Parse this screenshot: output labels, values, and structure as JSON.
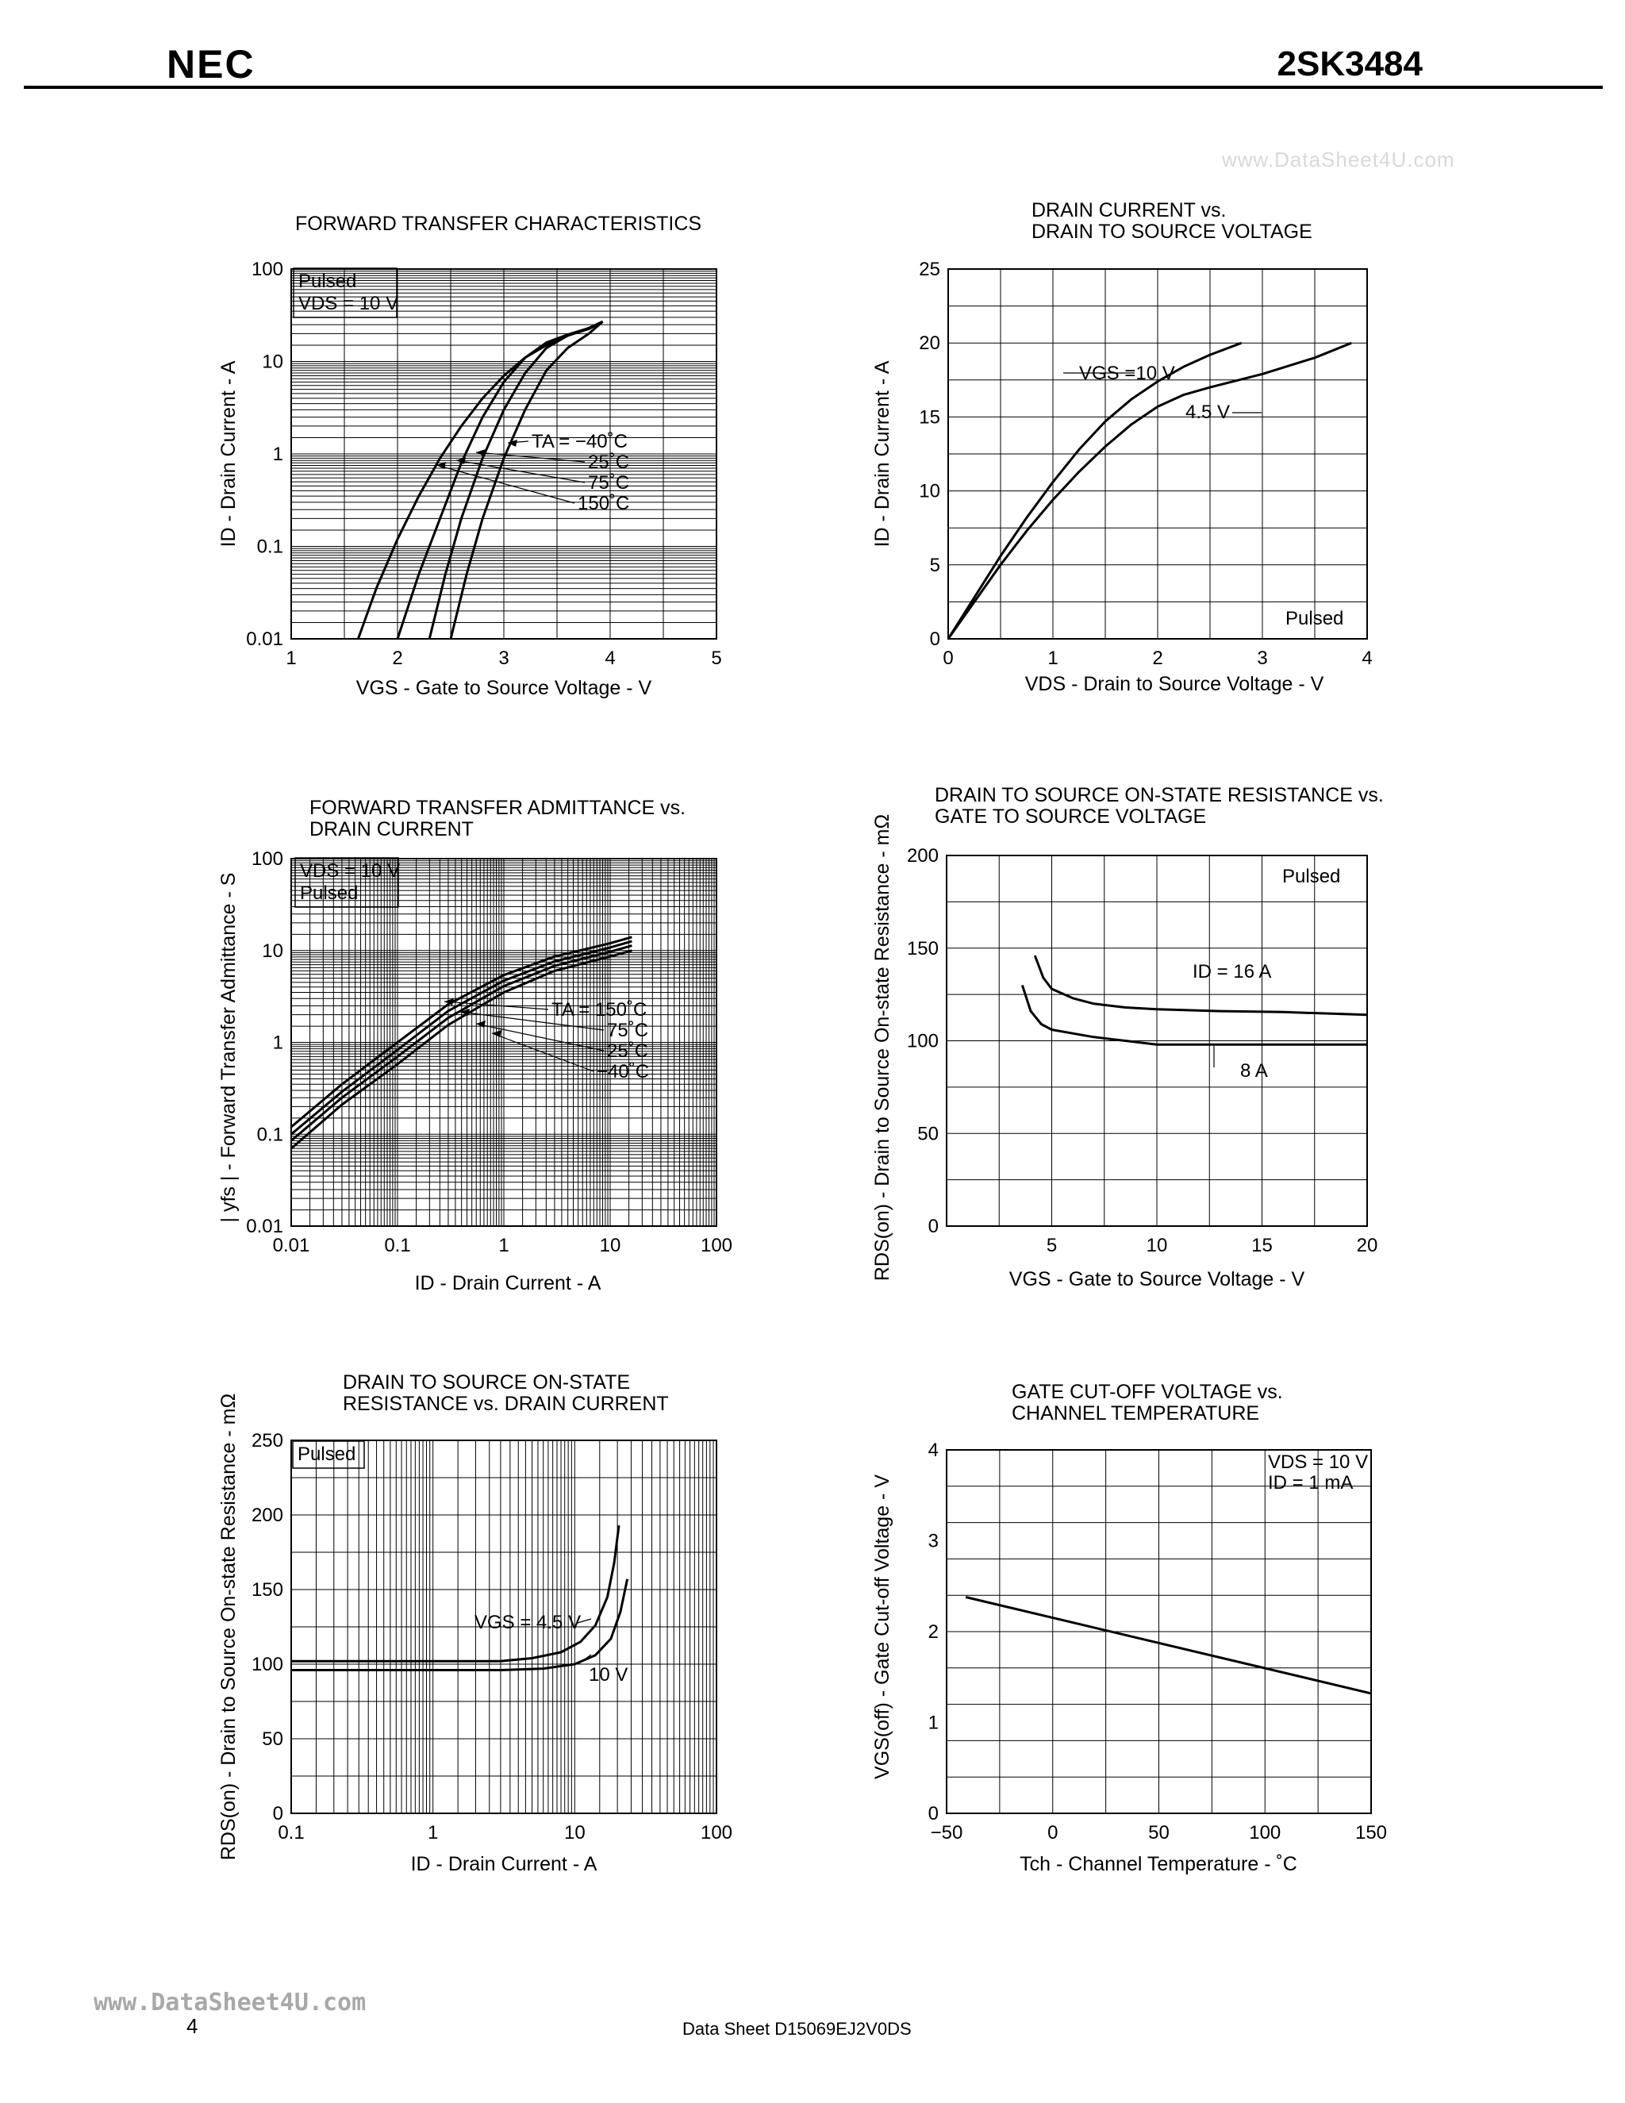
{
  "header": {
    "brand": "NEC",
    "part_number": "2SK3484"
  },
  "watermarks": {
    "top": "www.DataSheet4U.com",
    "bottom": "www.DataSheet4U.com"
  },
  "footer": {
    "page": "4",
    "doc": "Data Sheet  D15069EJ2V0DS"
  },
  "chart_data": [
    {
      "id": "fwd_transfer",
      "type": "line",
      "title": [
        "FORWARD TRANSFER CHARACTERISTICS"
      ],
      "xlabel": "VGS -  Gate to Source Voltage -  V",
      "ylabel": "ID -  Drain Current -  A",
      "xscale": "linear",
      "yscale": "log",
      "xlim": [
        1,
        5
      ],
      "ylim": [
        0.01,
        100
      ],
      "xticks": [
        "1",
        "2",
        "3",
        "4",
        "5"
      ],
      "yticks": [
        "0.01",
        "0.1",
        "1",
        "10",
        "100"
      ],
      "notes": [
        "Pulsed",
        "VDS = 10 V"
      ],
      "legend": [
        "TA = −40˚C",
        "25˚C",
        "75˚C",
        "150˚C"
      ],
      "series": [
        {
          "name": "−40˚C",
          "x": [
            2.5,
            2.65,
            2.8,
            3.0,
            3.2,
            3.4,
            3.6,
            3.8,
            3.93
          ],
          "y": [
            0.01,
            0.05,
            0.2,
            0.9,
            3.0,
            8.0,
            14.0,
            20.0,
            27.0
          ]
        },
        {
          "name": "25˚C",
          "x": [
            2.3,
            2.45,
            2.6,
            2.8,
            3.0,
            3.2,
            3.4,
            3.6,
            3.8,
            3.93
          ],
          "y": [
            0.01,
            0.05,
            0.2,
            0.9,
            3.0,
            7.5,
            14.0,
            19.0,
            23.0,
            27.0
          ]
        },
        {
          "name": "75˚C",
          "x": [
            2.0,
            2.2,
            2.4,
            2.6,
            2.8,
            3.0,
            3.2,
            3.4,
            3.6,
            3.8,
            3.93
          ],
          "y": [
            0.01,
            0.05,
            0.2,
            0.8,
            2.5,
            6.0,
            11.0,
            16.0,
            19.5,
            23.0,
            27.0
          ]
        },
        {
          "name": "150˚C",
          "x": [
            1.63,
            1.8,
            2.0,
            2.2,
            2.4,
            2.6,
            2.8,
            3.0,
            3.2,
            3.4,
            3.6,
            3.8,
            3.93
          ],
          "y": [
            0.01,
            0.035,
            0.12,
            0.35,
            0.9,
            2.0,
            4.0,
            7.0,
            11.0,
            15.0,
            19.0,
            22.5,
            27.0
          ]
        }
      ]
    },
    {
      "id": "id_vds",
      "type": "line",
      "title": [
        "DRAIN CURRENT vs.",
        "DRAIN TO SOURCE VOLTAGE"
      ],
      "xlabel": "VDS -  Drain to Source Voltage - V",
      "ylabel": "ID -  Drain Current -  A",
      "xscale": "linear",
      "yscale": "linear",
      "xlim": [
        0,
        4
      ],
      "ylim": [
        0,
        25
      ],
      "xticks": [
        "0",
        "1",
        "2",
        "3",
        "4"
      ],
      "yticks": [
        "0",
        "5",
        "10",
        "15",
        "20",
        "25"
      ],
      "notes": [
        "Pulsed"
      ],
      "legend": [
        "VGS =10 V",
        "4.5 V"
      ],
      "series": [
        {
          "name": "VGS =10 V",
          "x": [
            0,
            0.25,
            0.5,
            0.75,
            1.0,
            1.25,
            1.5,
            1.75,
            2.0,
            2.25,
            2.5,
            2.8
          ],
          "y": [
            0,
            2.8,
            5.6,
            8.2,
            10.6,
            12.8,
            14.7,
            16.2,
            17.4,
            18.4,
            19.2,
            20.0
          ]
        },
        {
          "name": "4.5 V",
          "x": [
            0,
            0.25,
            0.5,
            0.75,
            1.0,
            1.25,
            1.5,
            1.75,
            2.0,
            2.25,
            2.5,
            3.0,
            3.5,
            3.85
          ],
          "y": [
            0,
            2.5,
            5.0,
            7.3,
            9.4,
            11.3,
            13.0,
            14.5,
            15.7,
            16.5,
            17.0,
            17.9,
            19.0,
            20.0
          ]
        }
      ]
    },
    {
      "id": "yfs_id",
      "type": "line",
      "title": [
        "FORWARD TRANSFER ADMITTANCE vs.",
        "DRAIN CURRENT"
      ],
      "xlabel": "ID -  Drain Current -  A",
      "ylabel": "| yfs |  -  Forward Transfer Admittance  -  S",
      "xscale": "log",
      "yscale": "log",
      "xlim": [
        0.01,
        100
      ],
      "ylim": [
        0.01,
        100
      ],
      "xticks": [
        "0.01",
        "0.1",
        "1",
        "10",
        "100"
      ],
      "yticks": [
        "0.01",
        "0.1",
        "1",
        "10",
        "100"
      ],
      "notes": [
        "VDS = 10 V",
        "Pulsed"
      ],
      "legend": [
        "TA = 150˚C",
        "75˚C",
        "25˚C",
        "−40˚C"
      ],
      "series": [
        {
          "name": "−40˚C",
          "x": [
            0.01,
            0.03,
            0.1,
            0.3,
            1,
            3,
            10,
            16
          ],
          "y": [
            0.12,
            0.35,
            1.0,
            2.6,
            5.4,
            8.6,
            12.0,
            14.0
          ]
        },
        {
          "name": "25˚C",
          "x": [
            0.01,
            0.03,
            0.1,
            0.3,
            1,
            3,
            10,
            16
          ],
          "y": [
            0.1,
            0.29,
            0.83,
            2.2,
            4.7,
            7.6,
            10.8,
            12.6
          ]
        },
        {
          "name": "75˚C",
          "x": [
            0.01,
            0.03,
            0.1,
            0.3,
            1,
            3,
            10,
            16
          ],
          "y": [
            0.085,
            0.25,
            0.7,
            1.85,
            4.1,
            6.8,
            9.7,
            11.3
          ]
        },
        {
          "name": "150˚C",
          "x": [
            0.01,
            0.03,
            0.1,
            0.3,
            1,
            3,
            10,
            16
          ],
          "y": [
            0.07,
            0.21,
            0.58,
            1.55,
            3.5,
            6.0,
            8.6,
            10.0
          ]
        }
      ]
    },
    {
      "id": "rds_vgs",
      "type": "line",
      "title": [
        "DRAIN TO SOURCE ON-STATE RESISTANCE vs.",
        "GATE TO SOURCE VOLTAGE"
      ],
      "xlabel": "VGS -  Gate to Source Voltage  - V",
      "ylabel": "RDS(on) -  Drain to Source On-state Resistance - mΩ",
      "xscale": "linear",
      "yscale": "linear",
      "xlim": [
        0,
        20
      ],
      "ylim": [
        0,
        200
      ],
      "xticks": [
        "5",
        "10",
        "15",
        "20"
      ],
      "yticks": [
        "0",
        "50",
        "100",
        "150",
        "200"
      ],
      "notes": [
        "Pulsed"
      ],
      "legend": [
        "ID = 16 A",
        "8 A"
      ],
      "series": [
        {
          "name": "ID = 16 A",
          "x": [
            4.2,
            4.6,
            5.0,
            6.0,
            7.0,
            8.5,
            10.0,
            13.0,
            16.0,
            20.0
          ],
          "y": [
            146,
            134,
            128,
            123,
            120,
            118,
            117,
            116,
            115.5,
            114
          ]
        },
        {
          "name": "8 A",
          "x": [
            3.6,
            4.0,
            4.5,
            5.0,
            6.0,
            7.0,
            8.5,
            10.0,
            13.0,
            16.0,
            20.0
          ],
          "y": [
            130,
            116,
            109,
            106,
            104,
            102,
            100,
            98,
            98,
            98,
            98
          ]
        }
      ]
    },
    {
      "id": "rds_id",
      "type": "line",
      "title": [
        "DRAIN TO SOURCE ON-STATE",
        "RESISTANCE vs. DRAIN CURRENT"
      ],
      "xlabel": "ID -  Drain Current  -  A",
      "ylabel": "RDS(on) -  Drain to Source On-state Resistance - mΩ",
      "xscale": "log",
      "yscale": "linear",
      "xlim": [
        0.1,
        100
      ],
      "ylim": [
        0,
        250
      ],
      "xticks": [
        "0.1",
        "1",
        "10",
        "100"
      ],
      "yticks": [
        "0",
        "50",
        "100",
        "150",
        "200",
        "250"
      ],
      "notes": [
        "Pulsed"
      ],
      "legend": [
        "VGS = 4.5 V",
        "10 V"
      ],
      "series": [
        {
          "name": "VGS = 4.5 V",
          "x": [
            0.1,
            1,
            3,
            5,
            8,
            11,
            14,
            17,
            19,
            20.5
          ],
          "y": [
            102,
            102,
            102,
            104,
            108,
            115,
            126,
            145,
            168,
            193
          ]
        },
        {
          "name": "10 V",
          "x": [
            0.1,
            1,
            3,
            6,
            10,
            14,
            18,
            21,
            23.5
          ],
          "y": [
            96,
            96,
            96,
            97,
            100,
            106,
            117,
            135,
            157
          ]
        }
      ]
    },
    {
      "id": "vgsoff_tch",
      "type": "line",
      "title": [
        "GATE CUT-OFF VOLTAGE vs.",
        "CHANNEL TEMPERATURE"
      ],
      "xlabel": "Tch -  Channel Temperature  -  ˚C",
      "ylabel": "VGS(off) -  Gate Cut-off Voltage  -  V",
      "xscale": "linear",
      "yscale": "linear",
      "xlim": [
        -50,
        150
      ],
      "ylim": [
        0,
        4
      ],
      "xticks": [
        "−50",
        "0",
        "50",
        "100",
        "150"
      ],
      "yticks": [
        "0",
        "1",
        "2",
        "3",
        "4"
      ],
      "notes": [
        "VDS = 10 V",
        "ID = 1 mA"
      ],
      "legend": [],
      "series": [
        {
          "name": "VGS(off)",
          "x": [
            -41,
            150
          ],
          "y": [
            2.38,
            1.32
          ]
        }
      ]
    }
  ]
}
